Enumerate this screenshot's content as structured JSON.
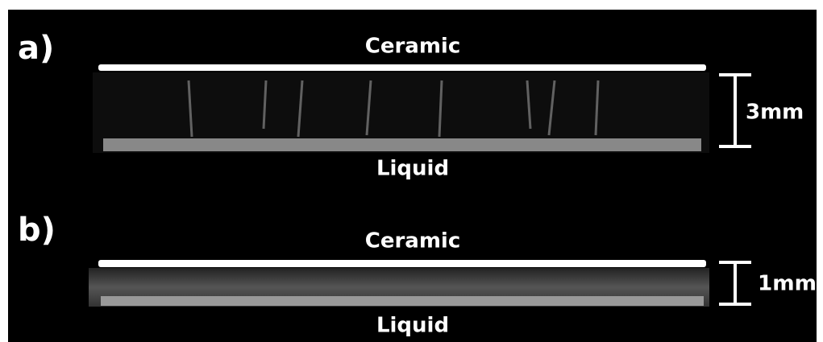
{
  "panels": [
    {
      "label": "a)",
      "top": "Ceramic",
      "bottom": "Liquid",
      "scale": "3mm"
    },
    {
      "label": "b)",
      "top": "Ceramic",
      "bottom": "Liquid",
      "scale": "1mm"
    }
  ]
}
